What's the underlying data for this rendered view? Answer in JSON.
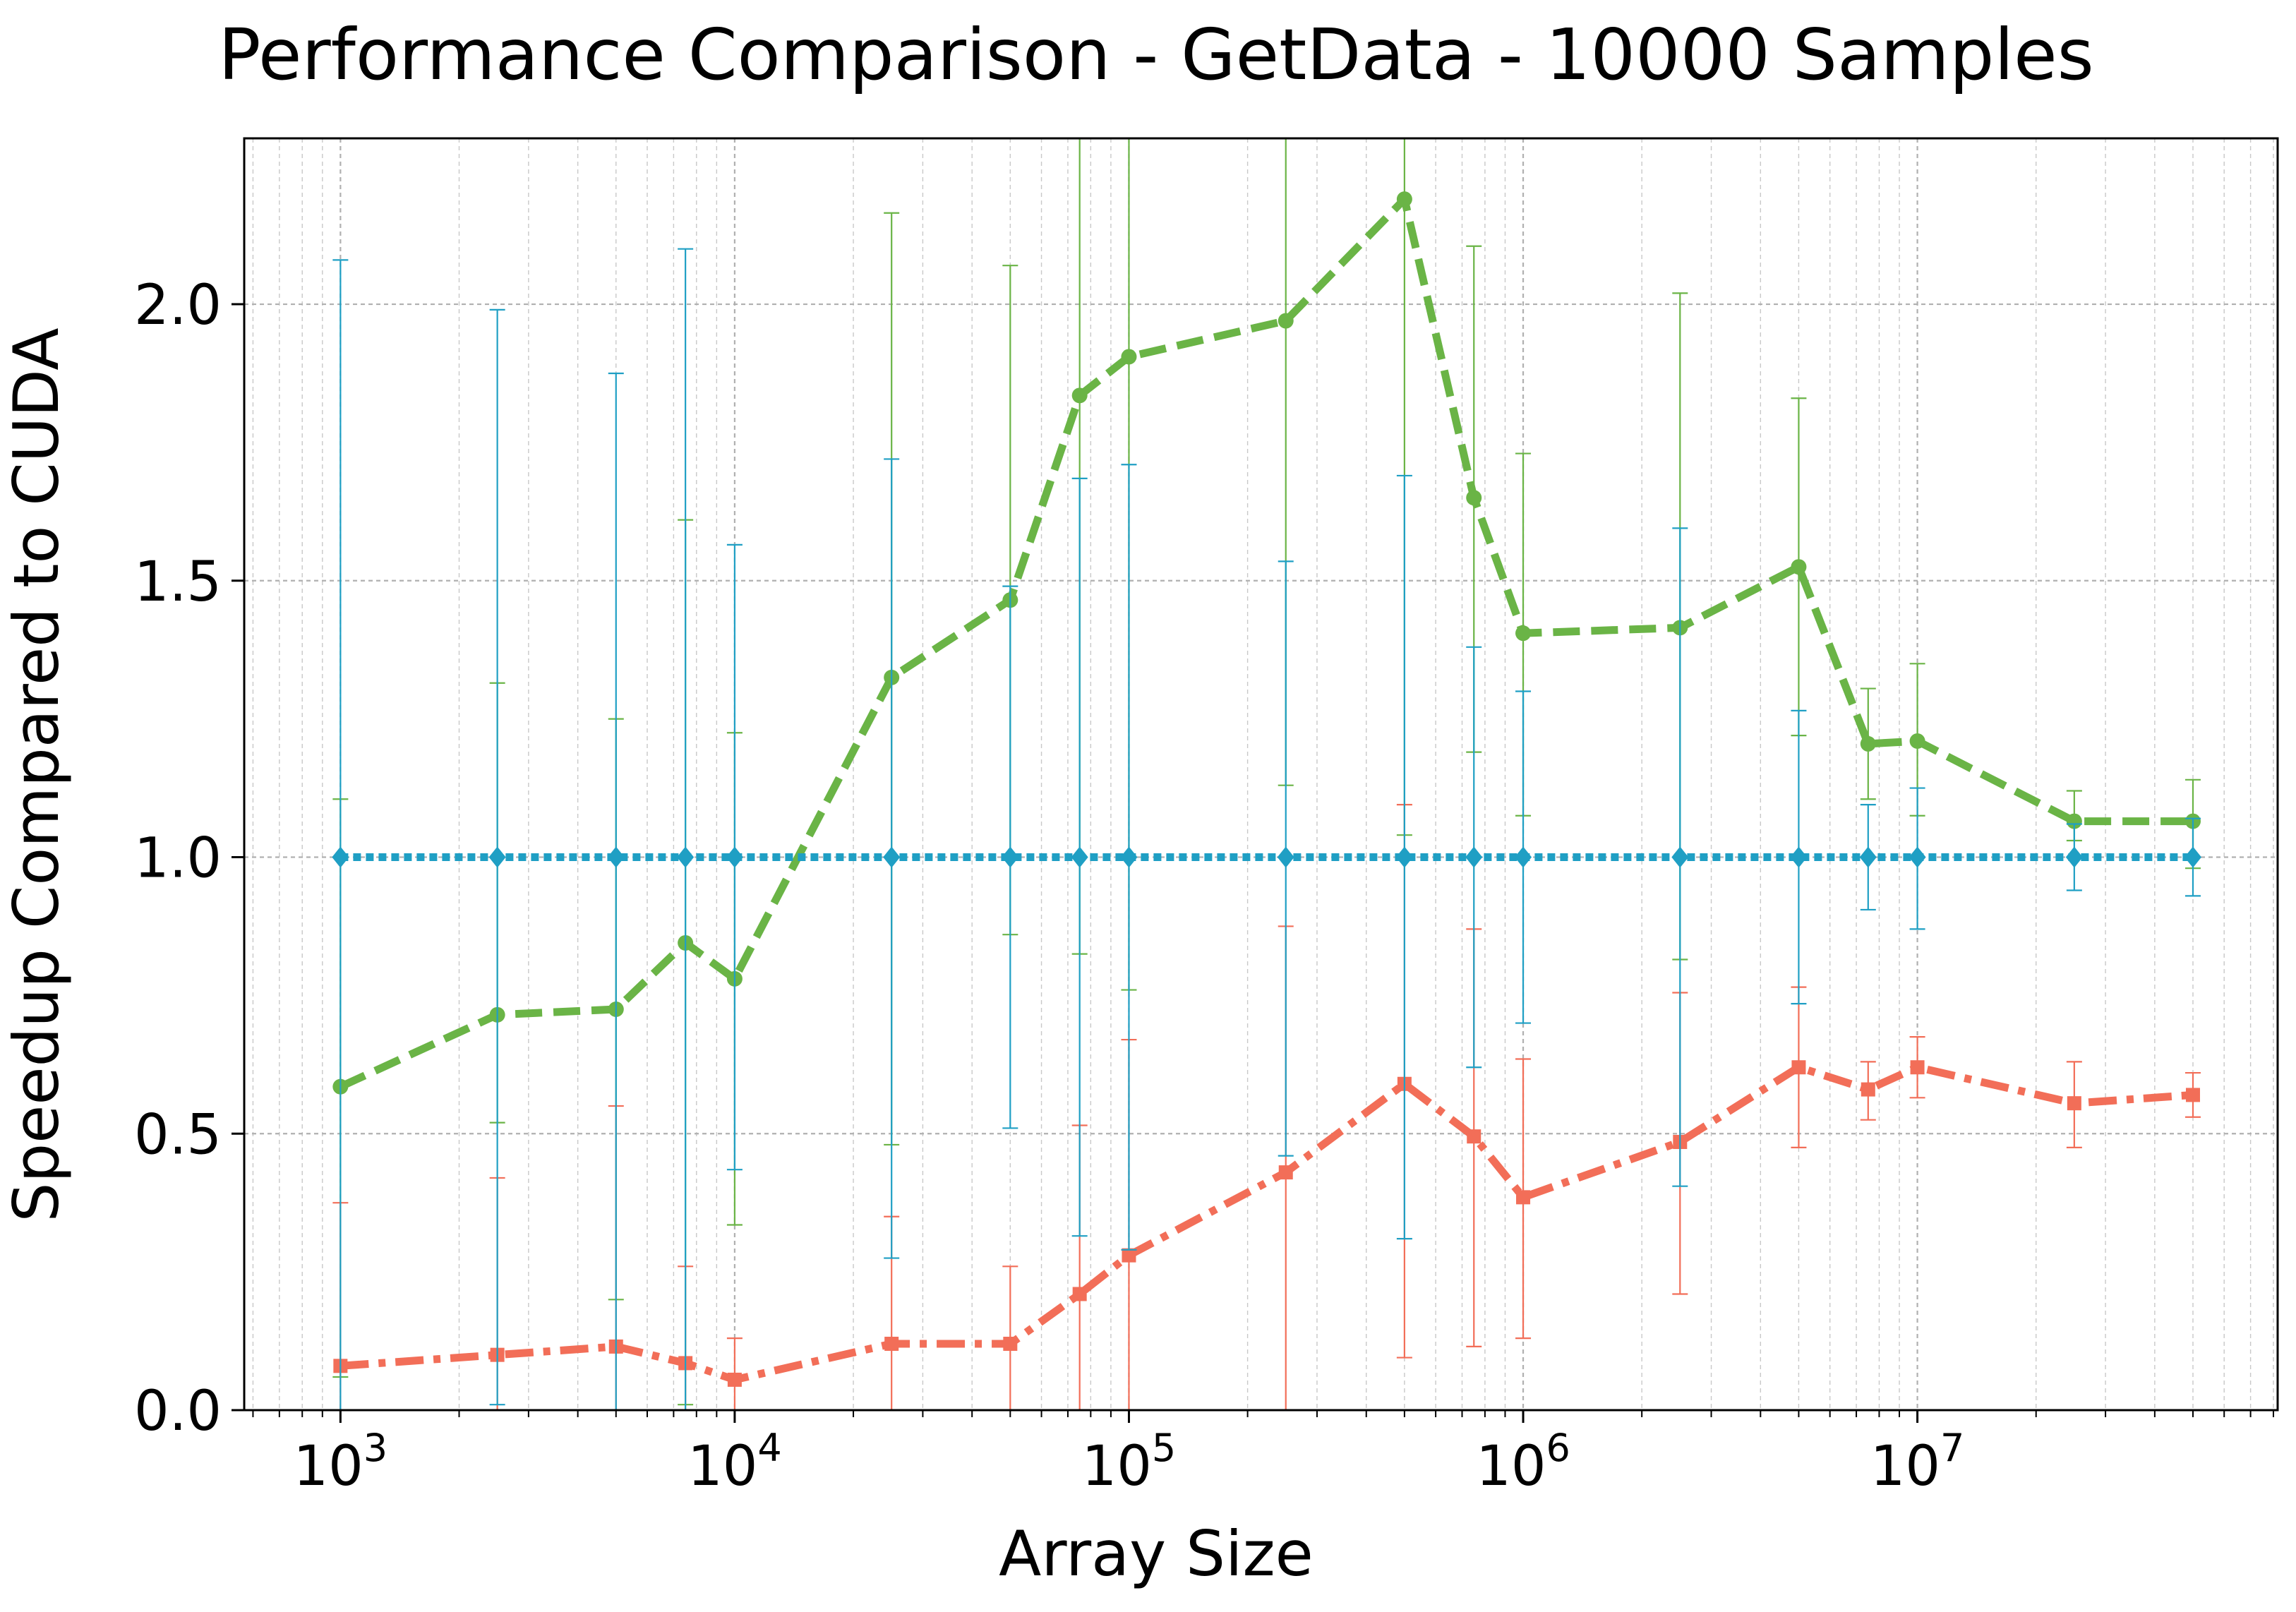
{
  "chart_data": {
    "type": "line",
    "title": "Performance Comparison - GetData - 10000 Samples",
    "xlabel": "Array Size",
    "ylabel": "Speedup Compared to CUDA",
    "xscale": "log",
    "xlim": [
      570,
      82000000
    ],
    "ylim": [
      0,
      2.3
    ],
    "x_tick_labels": [
      {
        "base": "10",
        "exp": "3",
        "value": 1000
      },
      {
        "base": "10",
        "exp": "4",
        "value": 10000
      },
      {
        "base": "10",
        "exp": "5",
        "value": 100000
      },
      {
        "base": "10",
        "exp": "6",
        "value": 1000000
      },
      {
        "base": "10",
        "exp": "7",
        "value": 10000000
      }
    ],
    "y_tick_labels": [
      "0.0",
      "0.5",
      "1.0",
      "1.5",
      "2.0"
    ],
    "y_tick_values": [
      0,
      0.5,
      1.0,
      1.5,
      2.0
    ],
    "grid": true,
    "x": [
      1000,
      2500,
      5000,
      7500,
      10000,
      25000,
      50000,
      75000,
      100000,
      250000,
      500000,
      750000,
      1000000,
      2500000,
      5000000,
      7500000,
      10000000,
      25000000,
      50000000
    ],
    "series": [
      {
        "color": "#6ab446",
        "linestyle": "dashed",
        "marker": "circle",
        "values": [
          0.585,
          0.715,
          0.725,
          0.845,
          0.78,
          1.325,
          1.465,
          1.835,
          1.905,
          1.97,
          2.19,
          1.65,
          1.405,
          1.415,
          1.525,
          1.205,
          1.21,
          1.065,
          1.065
        ],
        "err_low": [
          0.06,
          0.52,
          0.2,
          0.01,
          0.335,
          0.48,
          0.86,
          0.825,
          0.76,
          1.13,
          1.04,
          1.19,
          1.075,
          0.815,
          1.22,
          1.105,
          1.075,
          1.03,
          0.98
        ],
        "err_high": [
          1.105,
          1.315,
          1.25,
          1.61,
          1.225,
          2.165,
          2.07,
          2.3,
          2.3,
          2.3,
          2.3,
          2.105,
          1.73,
          2.02,
          1.83,
          1.305,
          1.35,
          1.12,
          1.14
        ]
      },
      {
        "color": "#f26e58",
        "linestyle": "dashdot",
        "marker": "square",
        "values": [
          0.08,
          0.1,
          0.115,
          0.085,
          0.055,
          0.12,
          0.12,
          0.21,
          0.28,
          0.43,
          0.59,
          0.495,
          0.385,
          0.485,
          0.62,
          0.58,
          0.62,
          0.555,
          0.57
        ],
        "err_low": [
          0,
          0,
          0,
          0,
          0,
          0,
          0,
          0,
          0,
          0,
          0.095,
          0.115,
          0.13,
          0.21,
          0.475,
          0.525,
          0.565,
          0.475,
          0.53
        ],
        "err_high": [
          0.375,
          0.42,
          0.55,
          0.26,
          0.13,
          0.35,
          0.26,
          0.515,
          0.67,
          0.875,
          1.095,
          0.87,
          0.635,
          0.755,
          0.765,
          0.63,
          0.675,
          0.63,
          0.61
        ]
      },
      {
        "color": "#1f9fc4",
        "linestyle": "dotted",
        "marker": "diamond",
        "values": [
          1,
          1,
          1,
          1,
          1,
          1,
          1,
          1,
          1,
          1,
          1,
          1,
          1,
          1,
          1,
          1,
          1,
          1,
          1
        ],
        "err_low": [
          0,
          0.01,
          0,
          0,
          0.435,
          0.275,
          0.51,
          0.315,
          0.29,
          0.46,
          0.31,
          0.62,
          0.7,
          0.405,
          0.735,
          0.905,
          0.87,
          0.94,
          0.93
        ],
        "err_high": [
          2.08,
          1.99,
          1.875,
          2.1,
          1.565,
          1.72,
          1.49,
          1.685,
          1.71,
          1.535,
          1.69,
          1.38,
          1.3,
          1.595,
          1.265,
          1.095,
          1.125,
          1.06,
          1.07
        ]
      }
    ]
  }
}
